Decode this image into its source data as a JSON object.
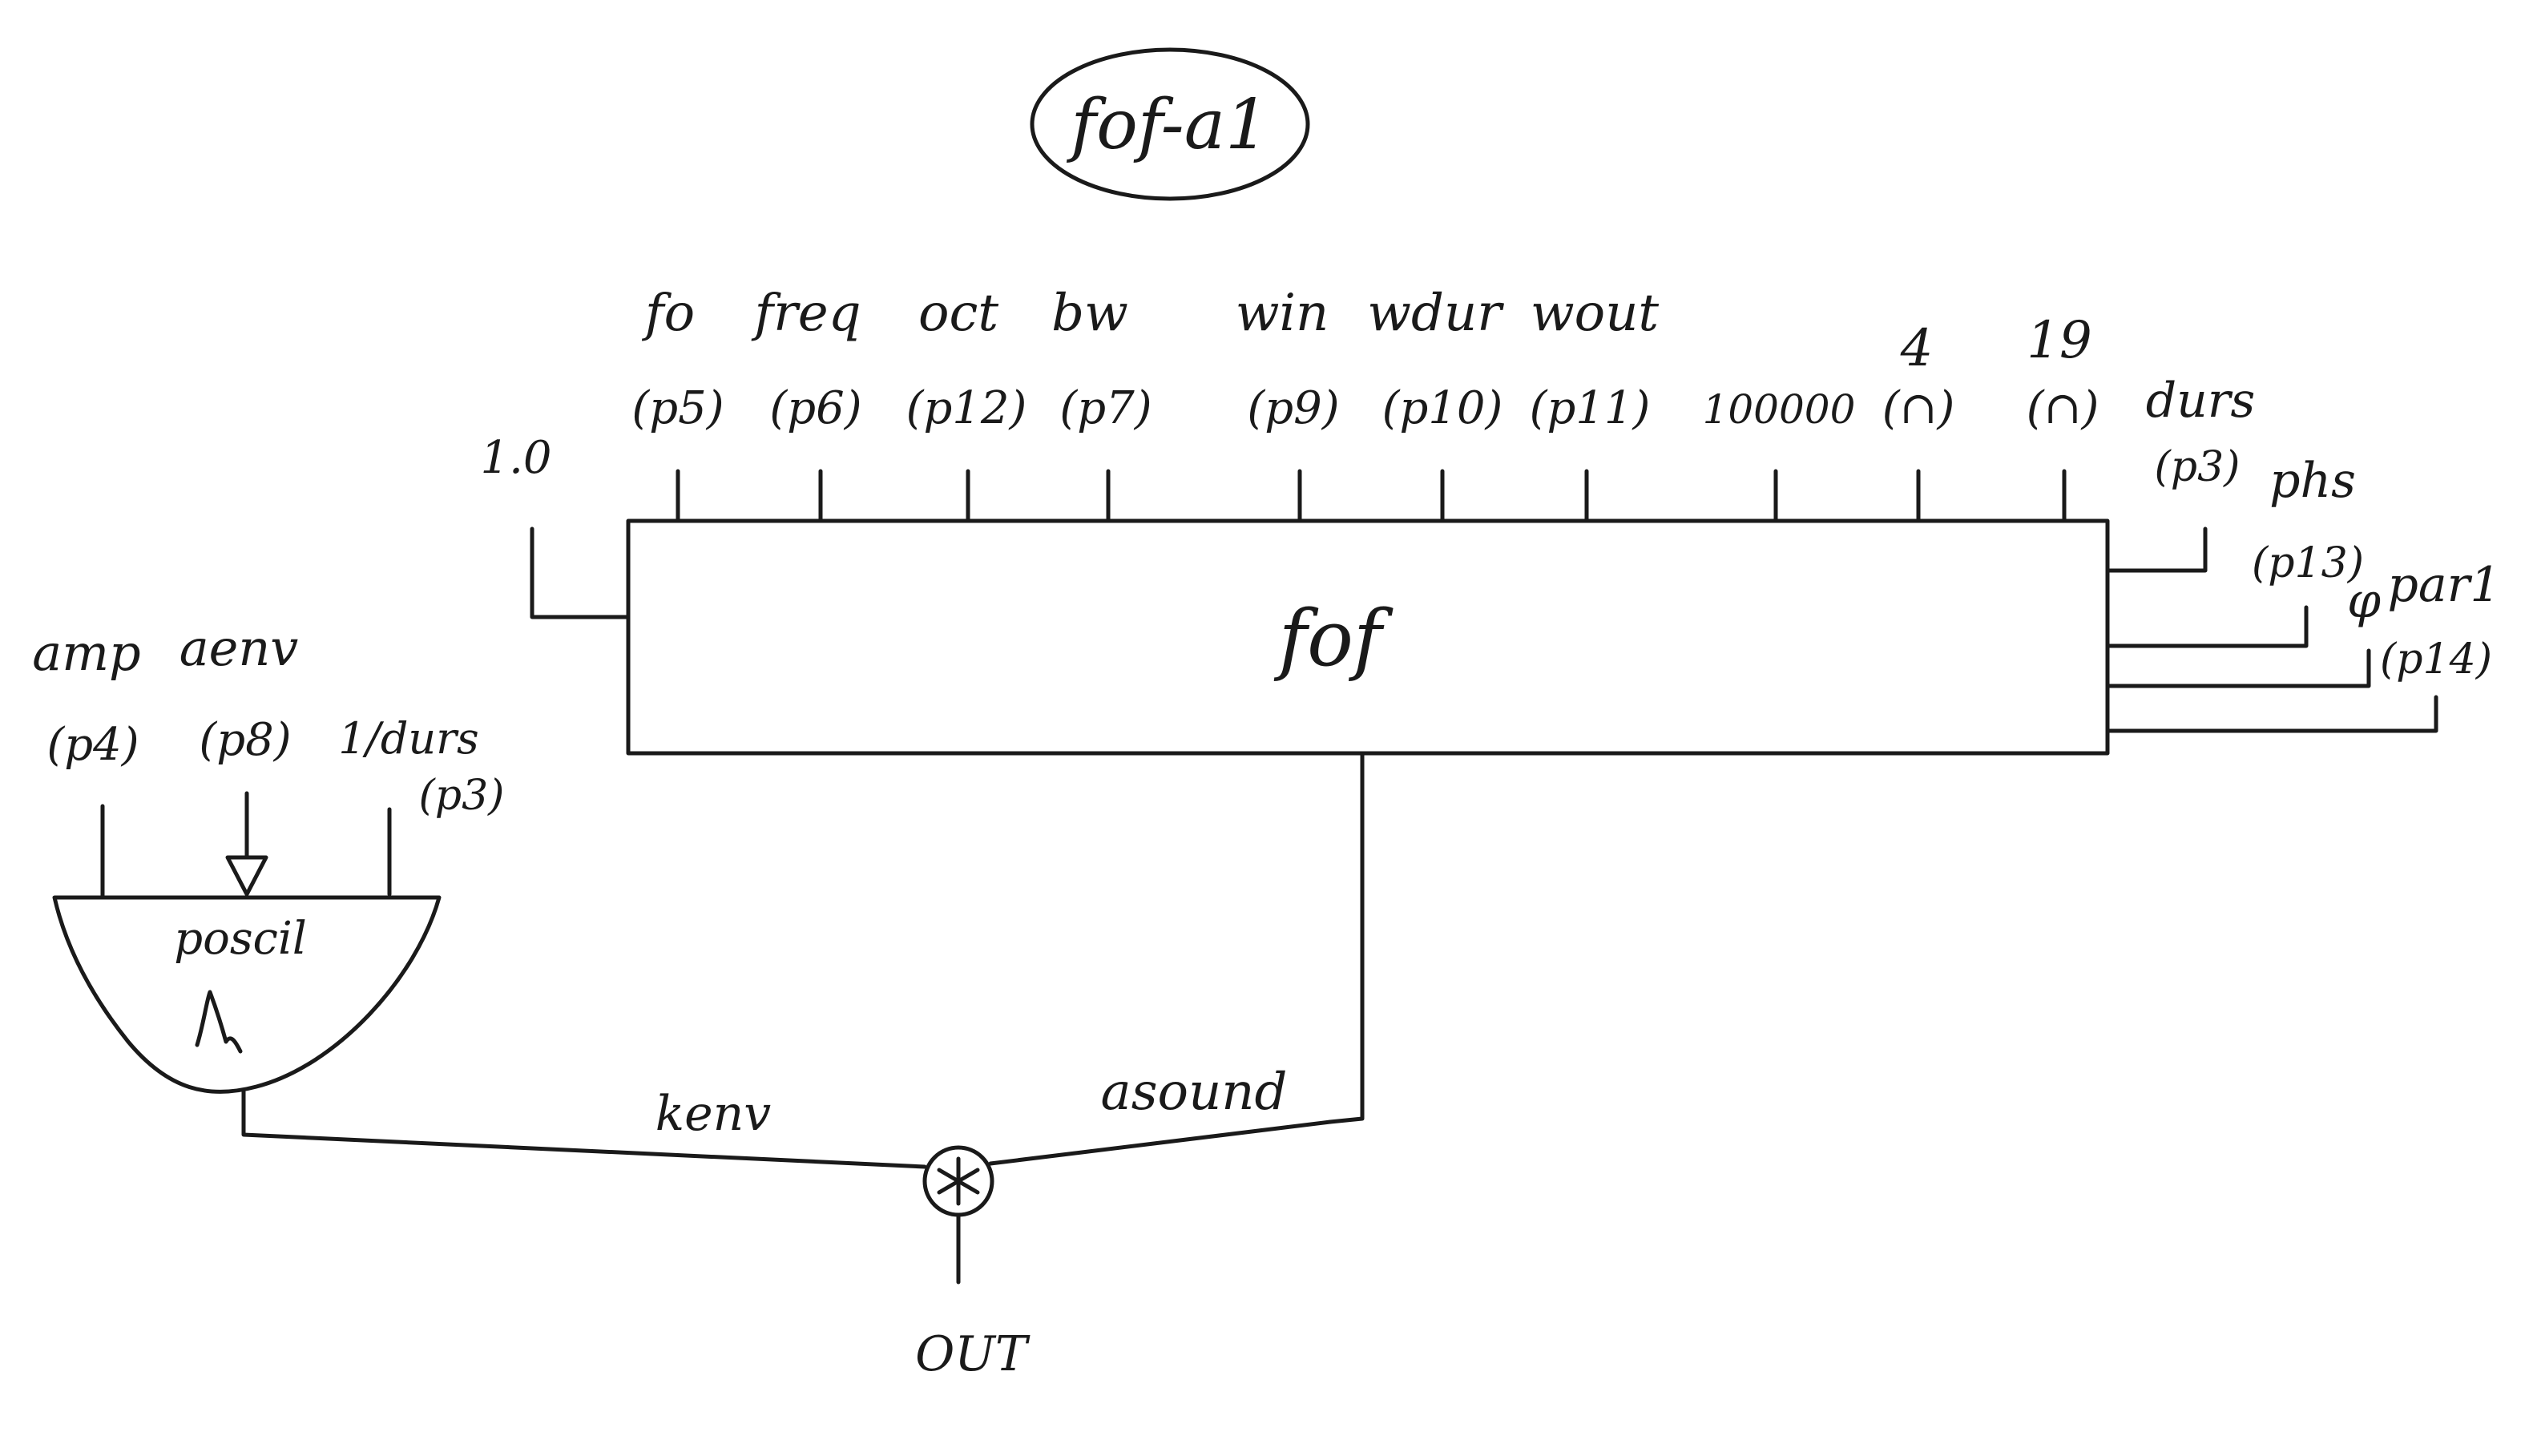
{
  "title": "fof-a1",
  "fof": {
    "label": "fof",
    "top_inputs": [
      {
        "name": "fo",
        "param": "(p5)"
      },
      {
        "name": "freq",
        "param": "(p6)"
      },
      {
        "name": "oct",
        "param": "(p12)"
      },
      {
        "name": "bw",
        "param": "(p7)"
      },
      {
        "name": "win",
        "param": "(p9)"
      },
      {
        "name": "wdur",
        "param": "(p10)"
      },
      {
        "name": "wout",
        "param": "(p11)"
      },
      {
        "name": "",
        "param": "100000"
      },
      {
        "name": "4",
        "param": "(∩)"
      },
      {
        "name": "19",
        "param": "(∩)"
      }
    ],
    "left_input": "1.0",
    "right_inputs": [
      {
        "name": "durs",
        "param": "(p3)"
      },
      {
        "name": "phs",
        "param": "(p13)"
      },
      {
        "name": "φ",
        "param": ""
      },
      {
        "name": "par1",
        "param": "(p14)"
      }
    ]
  },
  "poscil": {
    "label": "poscil",
    "inputs": [
      {
        "name": "amp",
        "param": "(p4)"
      },
      {
        "name": "aenv",
        "param": "(p8)"
      },
      {
        "name": "1/durs",
        "param": "(p3)"
      }
    ]
  },
  "signals": {
    "kenv": "kenv",
    "asound": "asound"
  },
  "output": "OUT"
}
